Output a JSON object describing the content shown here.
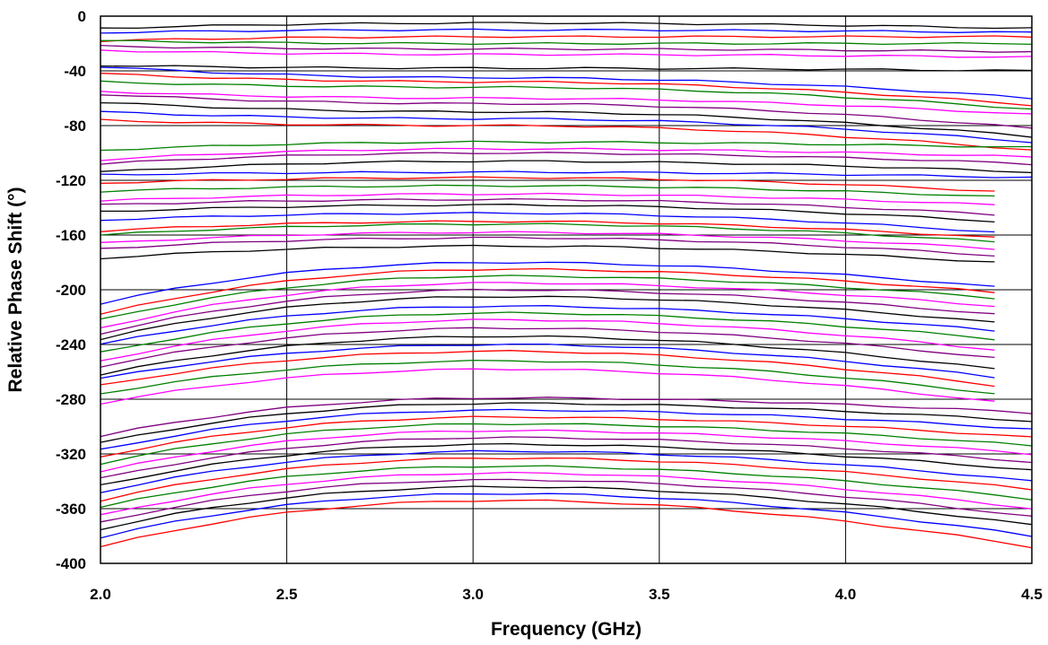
{
  "chart_data": {
    "type": "line",
    "title": "",
    "xlabel": "Frequency (GHz)",
    "ylabel": "Relative Phase Shift (°)",
    "xlim": [
      2.0,
      4.5
    ],
    "ylim": [
      -400,
      0
    ],
    "x_ticks": [
      "2.0",
      "2.5",
      "3.0",
      "3.5",
      "4.0",
      "4.5"
    ],
    "y_ticks": [
      "0",
      "-40",
      "-80",
      "-120",
      "-160",
      "-200",
      "-240",
      "-280",
      "-320",
      "-360",
      "-400"
    ],
    "grid": true,
    "legend": "none",
    "colors": [
      "#000000",
      "#0000ff",
      "#ff0000",
      "#008000",
      "#ff00ff",
      "#800080"
    ],
    "x": [
      2.0,
      2.1,
      2.2,
      2.3,
      2.4,
      2.5,
      2.6,
      2.7,
      2.8,
      2.9,
      3.0,
      3.1,
      3.2,
      3.3,
      3.4,
      3.5,
      3.6,
      3.7,
      3.8,
      3.9,
      4.0,
      4.1,
      4.2,
      4.3,
      4.4,
      4.5
    ],
    "top_block": {
      "x_end": 4.5,
      "series": [
        {
          "color": "#000000",
          "start": -9,
          "peak": -5,
          "end": -9
        },
        {
          "color": "#0000ff",
          "start": -12,
          "peak": -10,
          "end": -12
        },
        {
          "color": "#ff0000",
          "start": -18,
          "peak": -15,
          "end": -15
        },
        {
          "color": "#008000",
          "start": -18,
          "peak": -20,
          "end": -20
        },
        {
          "color": "#800080",
          "start": -22,
          "peak": -24,
          "end": -26
        },
        {
          "color": "#ff00ff",
          "start": -25,
          "peak": -28,
          "end": -30
        },
        {
          "color": "#000000",
          "start": -36,
          "peak": -38,
          "end": -40
        },
        {
          "color": "#0000ff",
          "start": -37,
          "peak": -45,
          "end": -60
        },
        {
          "color": "#ff0000",
          "start": -42,
          "peak": -48,
          "end": -65
        },
        {
          "color": "#008000",
          "start": -48,
          "peak": -52,
          "end": -68
        },
        {
          "color": "#ff00ff",
          "start": -55,
          "peak": -60,
          "end": -72
        },
        {
          "color": "#800080",
          "start": -57,
          "peak": -64,
          "end": -82
        },
        {
          "color": "#000000",
          "start": -63,
          "peak": -70,
          "end": -88
        },
        {
          "color": "#0000ff",
          "start": -70,
          "peak": -75,
          "end": -92
        },
        {
          "color": "#ff0000",
          "start": -76,
          "peak": -80,
          "end": -98
        },
        {
          "color": "#008000",
          "start": -98,
          "peak": -92,
          "end": -96
        },
        {
          "color": "#ff00ff",
          "start": -105,
          "peak": -97,
          "end": -103
        },
        {
          "color": "#800080",
          "start": -108,
          "peak": -100,
          "end": -108
        },
        {
          "color": "#000000",
          "start": -114,
          "peak": -106,
          "end": -114
        },
        {
          "color": "#0000ff",
          "start": -116,
          "peak": -114,
          "end": -118
        }
      ]
    },
    "mid_block": {
      "x_end": 4.4,
      "series": [
        {
          "color": "#ff0000",
          "start": -122,
          "peak": -118,
          "end": -128
        },
        {
          "color": "#008000",
          "start": -128,
          "peak": -124,
          "end": -132
        },
        {
          "color": "#ff00ff",
          "start": -135,
          "peak": -130,
          "end": -138
        },
        {
          "color": "#800080",
          "start": -138,
          "peak": -134,
          "end": -145
        },
        {
          "color": "#000000",
          "start": -143,
          "peak": -138,
          "end": -150
        },
        {
          "color": "#0000ff",
          "start": -149,
          "peak": -144,
          "end": -158
        },
        {
          "color": "#ff0000",
          "start": -157,
          "peak": -150,
          "end": -162
        },
        {
          "color": "#008000",
          "start": -160,
          "peak": -152,
          "end": -165
        },
        {
          "color": "#ff00ff",
          "start": -166,
          "peak": -158,
          "end": -170
        },
        {
          "color": "#800080",
          "start": -170,
          "peak": -162,
          "end": -175
        },
        {
          "color": "#000000",
          "start": -177,
          "peak": -168,
          "end": -180
        },
        {
          "color": "#0000ff",
          "start": -210,
          "peak": -180,
          "end": -198
        },
        {
          "color": "#ff0000",
          "start": -218,
          "peak": -185,
          "end": -202
        },
        {
          "color": "#008000",
          "start": -222,
          "peak": -190,
          "end": -206
        },
        {
          "color": "#ff00ff",
          "start": -228,
          "peak": -195,
          "end": -212
        },
        {
          "color": "#800080",
          "start": -232,
          "peak": -200,
          "end": -218
        },
        {
          "color": "#000000",
          "start": -236,
          "peak": -205,
          "end": -224
        },
        {
          "color": "#0000ff",
          "start": -240,
          "peak": -212,
          "end": -230
        },
        {
          "color": "#008000",
          "start": -246,
          "peak": -217,
          "end": -236
        },
        {
          "color": "#ff00ff",
          "start": -252,
          "peak": -222,
          "end": -244
        },
        {
          "color": "#800080",
          "start": -256,
          "peak": -228,
          "end": -250
        },
        {
          "color": "#000000",
          "start": -262,
          "peak": -234,
          "end": -258
        },
        {
          "color": "#0000ff",
          "start": -265,
          "peak": -240,
          "end": -264
        },
        {
          "color": "#ff0000",
          "start": -270,
          "peak": -245,
          "end": -270
        },
        {
          "color": "#008000",
          "start": -276,
          "peak": -252,
          "end": -276
        },
        {
          "color": "#ff00ff",
          "start": -283,
          "peak": -258,
          "end": -282
        }
      ]
    },
    "bottom_block": {
      "x_end": 4.5,
      "series": [
        {
          "color": "#800080",
          "start": -307,
          "peak": -279,
          "end": -290
        },
        {
          "color": "#000000",
          "start": -312,
          "peak": -283,
          "end": -296
        },
        {
          "color": "#0000ff",
          "start": -317,
          "peak": -288,
          "end": -302
        },
        {
          "color": "#ff0000",
          "start": -322,
          "peak": -293,
          "end": -308
        },
        {
          "color": "#008000",
          "start": -327,
          "peak": -298,
          "end": -314
        },
        {
          "color": "#ff00ff",
          "start": -333,
          "peak": -303,
          "end": -320
        },
        {
          "color": "#800080",
          "start": -338,
          "peak": -308,
          "end": -326
        },
        {
          "color": "#000000",
          "start": -343,
          "peak": -313,
          "end": -332
        },
        {
          "color": "#0000ff",
          "start": -348,
          "peak": -318,
          "end": -340
        },
        {
          "color": "#ff0000",
          "start": -354,
          "peak": -323,
          "end": -346
        },
        {
          "color": "#008000",
          "start": -359,
          "peak": -329,
          "end": -353
        },
        {
          "color": "#ff00ff",
          "start": -365,
          "peak": -334,
          "end": -360
        },
        {
          "color": "#800080",
          "start": -370,
          "peak": -339,
          "end": -366
        },
        {
          "color": "#000000",
          "start": -375,
          "peak": -344,
          "end": -372
        },
        {
          "color": "#0000ff",
          "start": -381,
          "peak": -349,
          "end": -380
        },
        {
          "color": "#ff0000",
          "start": -388,
          "peak": -354,
          "end": -388
        }
      ]
    }
  }
}
